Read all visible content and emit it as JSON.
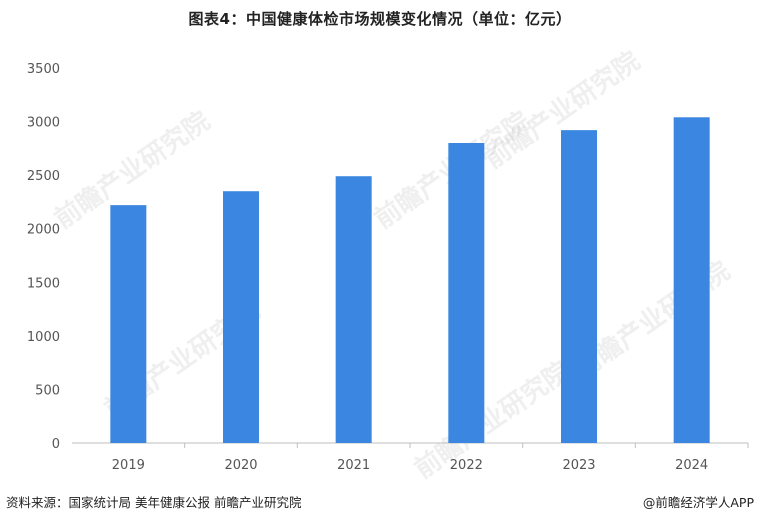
{
  "title": "图表4：中国健康体检市场规模变化情况（单位：亿元）",
  "watermark": "前瞻产业研究院",
  "footer": {
    "source": "资料来源：国家统计局 美年健康公报 前瞻产业研究院",
    "credit": "@前瞻经济学人APP"
  },
  "colors": {
    "bar": "#3a86e0",
    "axis": "#bfbfbf",
    "tick_text": "#555555"
  },
  "chart_data": {
    "type": "bar",
    "categories": [
      "2019",
      "2020",
      "2021",
      "2022",
      "2023",
      "2024"
    ],
    "values": [
      2220,
      2350,
      2490,
      2800,
      2920,
      3040
    ],
    "title": "图表4：中国健康体检市场规模变化情况（单位：亿元）",
    "xlabel": "",
    "ylabel": "",
    "ylim": [
      0,
      3500
    ],
    "yticks": [
      0,
      500,
      1000,
      1500,
      2000,
      2500,
      3000,
      3500
    ],
    "grid": false,
    "legend": "none"
  }
}
